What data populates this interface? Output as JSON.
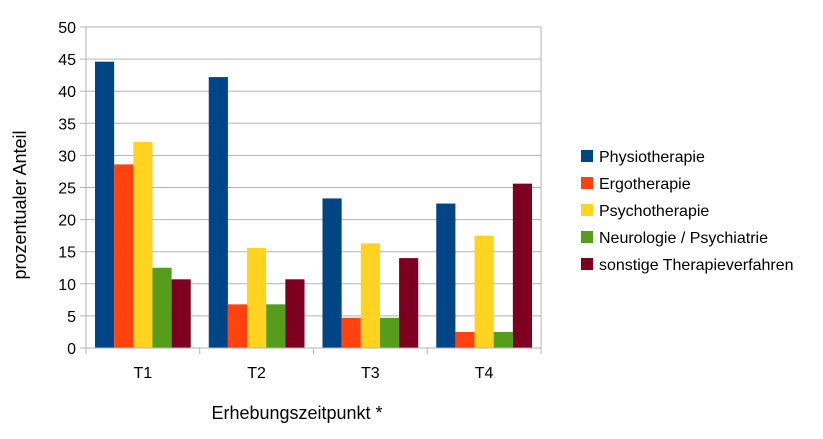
{
  "chart_data": {
    "type": "bar",
    "categories": [
      "T1",
      "T2",
      "T3",
      "T4"
    ],
    "series": [
      {
        "name": "Physiotherapie",
        "values": [
          44.6,
          42.2,
          23.3,
          22.5
        ],
        "color": "#004586"
      },
      {
        "name": "Ergotherapie",
        "values": [
          28.6,
          6.8,
          4.7,
          2.5
        ],
        "color": "#ff420e"
      },
      {
        "name": "Psychotherapie",
        "values": [
          32.1,
          15.6,
          16.3,
          17.5
        ],
        "color": "#ffd320"
      },
      {
        "name": "Neurologie / Psychiatrie",
        "values": [
          12.5,
          6.8,
          4.7,
          2.5
        ],
        "color": "#579d1c"
      },
      {
        "name": "sonstige Therapieverfahren",
        "values": [
          10.7,
          10.7,
          14.0,
          25.6
        ],
        "color": "#7e0021"
      }
    ],
    "title": "",
    "xlabel": "Erhebungszeitpunkt *",
    "ylabel": "prozentualer Anteil",
    "ylim": [
      0,
      50
    ],
    "yticks": [
      "0",
      "5",
      "10",
      "15",
      "20",
      "25",
      "30",
      "35",
      "40",
      "45",
      "50"
    ],
    "grid": true,
    "legend": "right"
  }
}
